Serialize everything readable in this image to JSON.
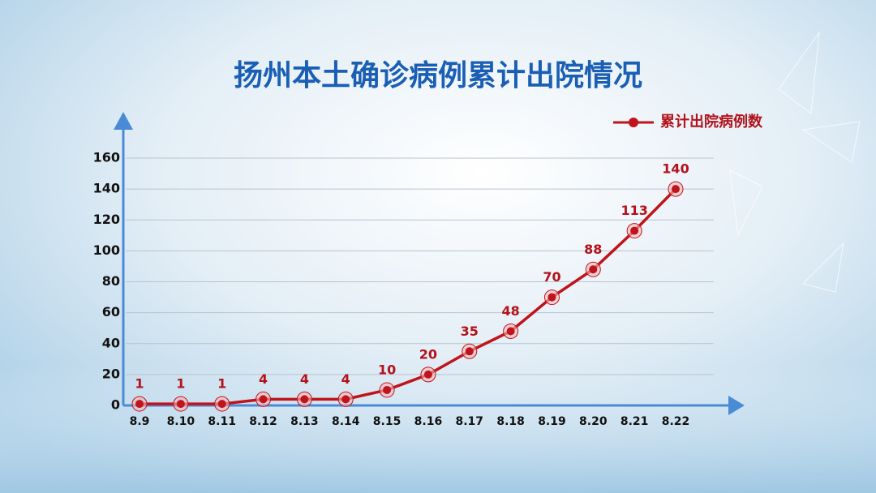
{
  "chart_data": {
    "type": "line",
    "title": "扬州本土确诊病例累计出院情况",
    "categories": [
      "8.9",
      "8.10",
      "8.11",
      "8.12",
      "8.13",
      "8.14",
      "8.15",
      "8.16",
      "8.17",
      "8.18",
      "8.19",
      "8.20",
      "8.21",
      "8.22"
    ],
    "series": [
      {
        "name": "累计出院病例数",
        "color": "#c0141c",
        "values": [
          1,
          1,
          1,
          4,
          4,
          4,
          10,
          20,
          35,
          48,
          70,
          88,
          113,
          140
        ]
      }
    ],
    "ylim": [
      0,
      160
    ],
    "yticks": [
      0,
      20,
      40,
      60,
      80,
      100,
      120,
      140,
      160
    ],
    "grid": true,
    "legend": "top-right"
  }
}
